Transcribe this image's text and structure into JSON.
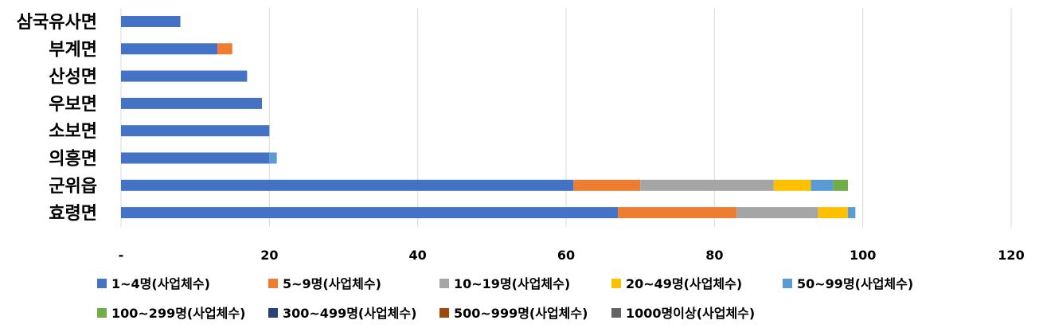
{
  "chart_data": {
    "type": "bar",
    "orientation": "horizontal",
    "stacked": true,
    "categories": [
      "삼국유사면",
      "부계면",
      "산성면",
      "우보면",
      "소보면",
      "의흥면",
      "군위읍",
      "효령면"
    ],
    "series": [
      {
        "name": "1~4명(사업체수)",
        "color": "#4472C4",
        "values": [
          8,
          13,
          17,
          19,
          20,
          20,
          61,
          67
        ]
      },
      {
        "name": "5~9명(사업체수)",
        "color": "#ED7D31",
        "values": [
          0,
          2,
          0,
          0,
          0,
          0,
          9,
          16
        ]
      },
      {
        "name": "10~19명(사업체수)",
        "color": "#A5A5A5",
        "values": [
          0,
          0,
          0,
          0,
          0,
          0,
          18,
          11
        ]
      },
      {
        "name": "20~49명(사업체수)",
        "color": "#FFC000",
        "values": [
          0,
          0,
          0,
          0,
          0,
          0,
          5,
          4
        ]
      },
      {
        "name": "50~99명(사업체수)",
        "color": "#5B9BD5",
        "values": [
          0,
          0,
          0,
          0,
          0,
          1,
          3,
          1
        ]
      },
      {
        "name": "100~299명(사업체수)",
        "color": "#70AD47",
        "values": [
          0,
          0,
          0,
          0,
          0,
          0,
          2,
          0
        ]
      },
      {
        "name": "300~499명(사업체수)",
        "color": "#264478",
        "values": [
          0,
          0,
          0,
          0,
          0,
          0,
          0,
          0
        ]
      },
      {
        "name": "500~999명(사업체수)",
        "color": "#9E480E",
        "values": [
          0,
          0,
          0,
          0,
          0,
          0,
          0,
          0
        ]
      },
      {
        "name": "1000명이상(사업체수)",
        "color": "#636363",
        "values": [
          0,
          0,
          0,
          0,
          0,
          0,
          0,
          0
        ]
      }
    ],
    "xlim": [
      0,
      120
    ],
    "xticks": [
      0,
      20,
      40,
      60,
      80,
      100,
      120
    ],
    "xtick_labels": [
      "-",
      "20",
      "40",
      "60",
      "80",
      "100",
      "120"
    ],
    "grid": true,
    "legend_position": "bottom",
    "title": "",
    "xlabel": "",
    "ylabel": ""
  }
}
